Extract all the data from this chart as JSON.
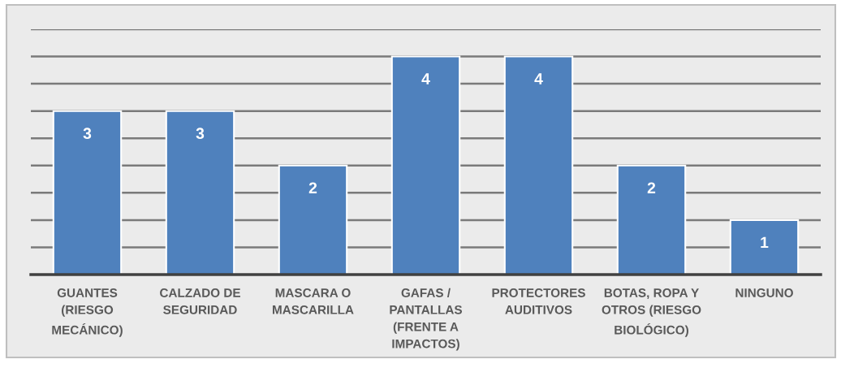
{
  "chart_data": {
    "type": "bar",
    "categories": [
      "GUANTES\n(RIESGO\nMECÁNICO)",
      "CALZADO DE\nSEGURIDAD",
      "MASCARA O\nMASCARILLA",
      "GAFAS /\nPANTALLAS\n(FRENTE A\nIMPACTOS)",
      "PROTECTORES\nAUDITIVOS",
      "BOTAS, ROPA Y\nOTROS (RIESGO\nBIOLÓGICO)",
      "NINGUNO"
    ],
    "values": [
      3,
      3,
      2,
      4,
      4,
      2,
      1
    ],
    "color": "#4f81bd",
    "ylim": [
      0,
      4.5
    ],
    "yticks": [
      {
        "value": 0.5,
        "label": null
      },
      {
        "value": 1,
        "label": null
      },
      {
        "value": 1.5,
        "label": null
      },
      {
        "value": 2,
        "label": null
      },
      {
        "value": 2.5,
        "label": null
      },
      {
        "value": 3,
        "label": null
      },
      {
        "value": 3.5,
        "label": null
      },
      {
        "value": 4,
        "label": null
      },
      {
        "value": 4.5,
        "label": null
      }
    ],
    "grid": "y",
    "data_labels": true,
    "tick_labels": "x"
  }
}
